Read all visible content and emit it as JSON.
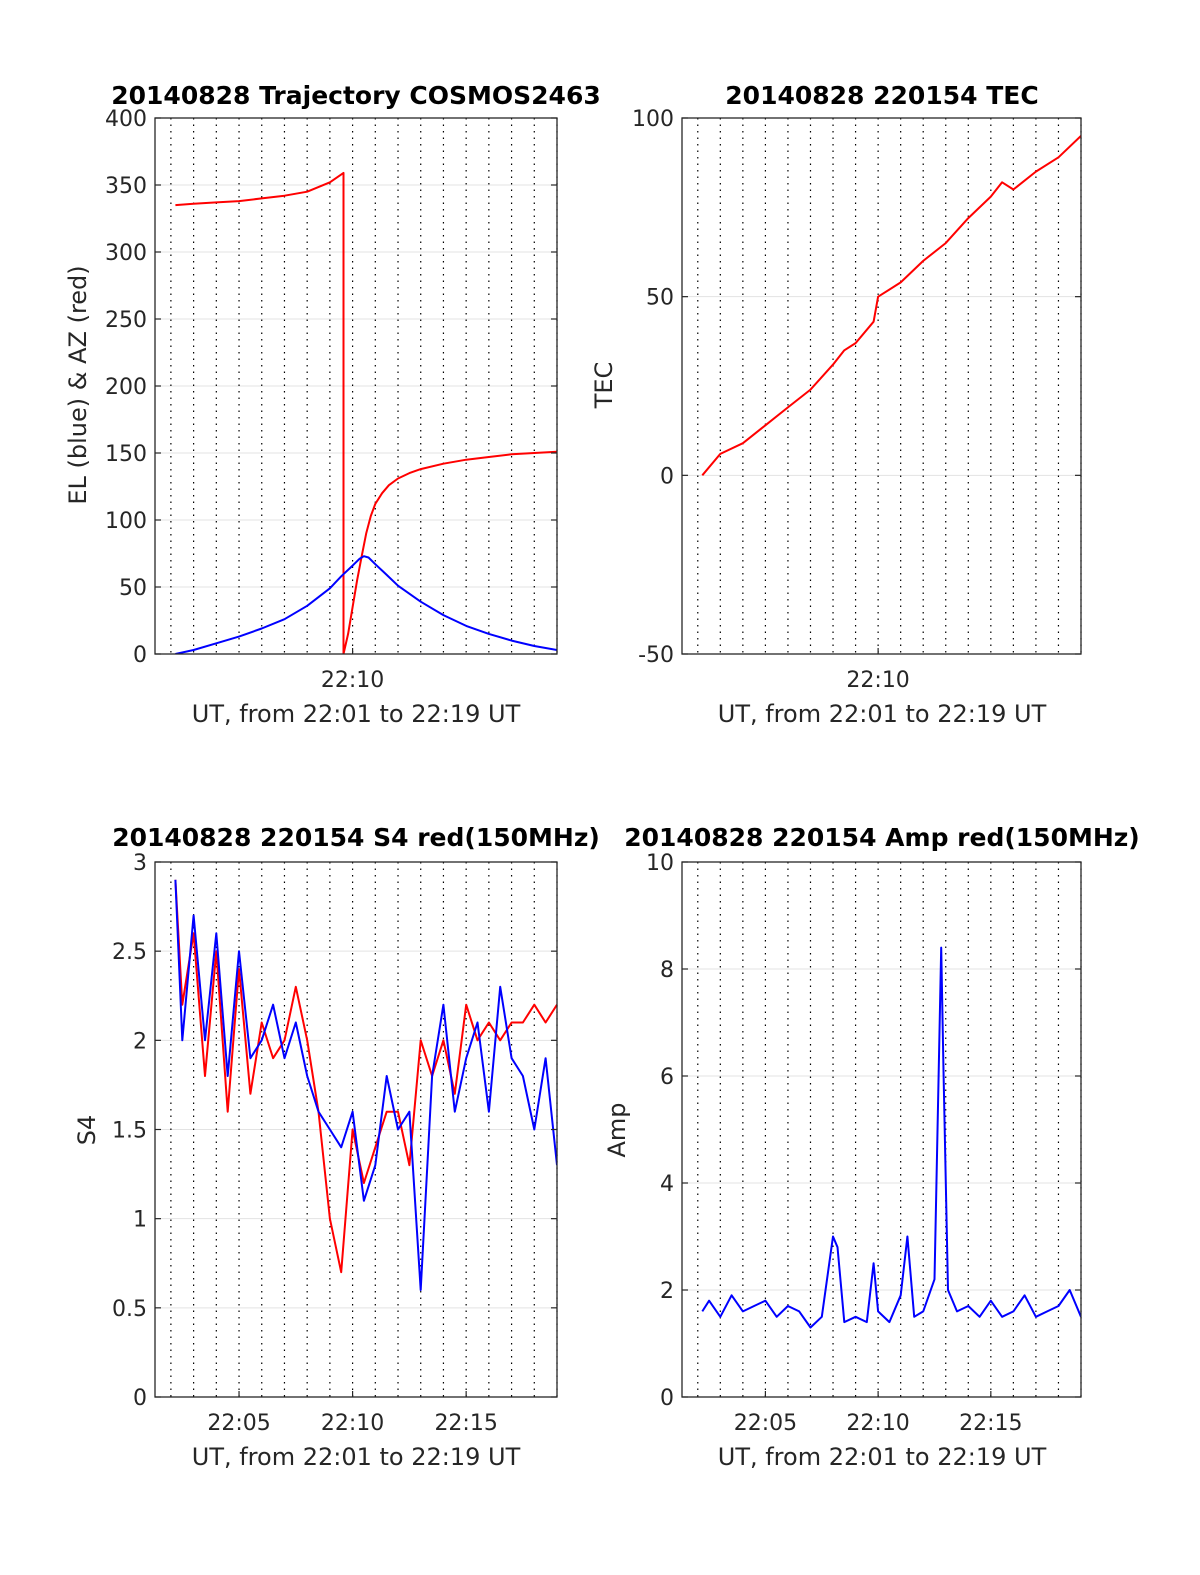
{
  "figure": {
    "colors": {
      "red": "#ff0000",
      "blue": "#0000ff",
      "axis": "#262626",
      "grid": "#000000"
    }
  },
  "chart_data": [
    {
      "type": "line",
      "title": "20140828 Trajectory COSMOS2463",
      "xlabel": "UT, from 22:01 to 22:19 UT",
      "ylabel": "EL (blue) & AZ (red)",
      "x_unit": "minutes after 22:00 UT",
      "xlim": [
        1.3,
        19
      ],
      "ylim": [
        0,
        400
      ],
      "yticks": [
        0,
        50,
        100,
        150,
        200,
        250,
        300,
        350,
        400
      ],
      "xticks": [
        {
          "value": 10,
          "label": "22:10"
        }
      ],
      "x_grid_dotted_every_min": 1,
      "y_grid": true,
      "series": [
        {
          "color": "red",
          "points": [
            [
              2.2,
              335
            ],
            [
              3,
              336
            ],
            [
              4,
              337
            ],
            [
              5,
              338
            ],
            [
              6,
              340
            ],
            [
              7,
              342
            ],
            [
              8,
              345
            ],
            [
              9,
              352
            ],
            [
              9.6,
              359
            ],
            [
              9.6,
              0
            ],
            [
              9.8,
              15
            ],
            [
              10,
              35
            ],
            [
              10.2,
              55
            ],
            [
              10.4,
              73
            ],
            [
              10.6,
              90
            ],
            [
              10.8,
              103
            ],
            [
              11,
              112
            ],
            [
              11.3,
              120
            ],
            [
              11.6,
              126
            ],
            [
              12,
              131
            ],
            [
              12.5,
              135
            ],
            [
              13,
              138
            ],
            [
              14,
              142
            ],
            [
              15,
              145
            ],
            [
              16,
              147
            ],
            [
              17,
              149
            ],
            [
              18,
              150
            ],
            [
              19,
              151
            ]
          ]
        },
        {
          "color": "blue",
          "points": [
            [
              2.2,
              0
            ],
            [
              3,
              3
            ],
            [
              4,
              8
            ],
            [
              5,
              13
            ],
            [
              6,
              19
            ],
            [
              7,
              26
            ],
            [
              8,
              36
            ],
            [
              9,
              49
            ],
            [
              9.5,
              58
            ],
            [
              10,
              66
            ],
            [
              10.3,
              71
            ],
            [
              10.5,
              73
            ],
            [
              10.7,
              72
            ],
            [
              11,
              67
            ],
            [
              11.5,
              59
            ],
            [
              12,
              51
            ],
            [
              13,
              39
            ],
            [
              14,
              29
            ],
            [
              15,
              21
            ],
            [
              16,
              15
            ],
            [
              17,
              10
            ],
            [
              18,
              6
            ],
            [
              19,
              3
            ]
          ]
        }
      ]
    },
    {
      "type": "line",
      "title": "20140828 220154 TEC",
      "xlabel": "UT, from 22:01 to 22:19 UT",
      "ylabel": "TEC",
      "x_unit": "minutes after 22:00 UT",
      "xlim": [
        1.3,
        19
      ],
      "ylim": [
        -50,
        100
      ],
      "yticks": [
        -50,
        0,
        50,
        100
      ],
      "xticks": [
        {
          "value": 10,
          "label": "22:10"
        }
      ],
      "x_grid_dotted_every_min": 1,
      "y_grid": true,
      "series": [
        {
          "color": "red",
          "points": [
            [
              2.2,
              0
            ],
            [
              3,
              6
            ],
            [
              4,
              9
            ],
            [
              5,
              14
            ],
            [
              6,
              19
            ],
            [
              7,
              24
            ],
            [
              8,
              31
            ],
            [
              8.5,
              35
            ],
            [
              9,
              37
            ],
            [
              9.8,
              43
            ],
            [
              10,
              50
            ],
            [
              11,
              54
            ],
            [
              12,
              60
            ],
            [
              13,
              65
            ],
            [
              14,
              72
            ],
            [
              15,
              78
            ],
            [
              15.5,
              82
            ],
            [
              16,
              80
            ],
            [
              17,
              85
            ],
            [
              18,
              89
            ],
            [
              19,
              95
            ]
          ]
        }
      ]
    },
    {
      "type": "line",
      "title": "20140828 220154 S4 red(150MHz)",
      "xlabel": "UT, from 22:01 to 22:19 UT",
      "ylabel": "S4",
      "x_unit": "minutes after 22:00 UT",
      "xlim": [
        1.3,
        19
      ],
      "ylim": [
        0,
        3
      ],
      "yticks": [
        0,
        0.5,
        1,
        1.5,
        2,
        2.5,
        3
      ],
      "xticks": [
        {
          "value": 5,
          "label": "22:05"
        },
        {
          "value": 10,
          "label": "22:10"
        },
        {
          "value": 15,
          "label": "22:15"
        }
      ],
      "x_grid_dotted_every_min": 1,
      "y_grid": true,
      "series": [
        {
          "color": "red",
          "points": [
            [
              2.2,
              2.9
            ],
            [
              2.5,
              2.2
            ],
            [
              3,
              2.6
            ],
            [
              3.5,
              1.8
            ],
            [
              4,
              2.5
            ],
            [
              4.5,
              1.6
            ],
            [
              5,
              2.4
            ],
            [
              5.5,
              1.7
            ],
            [
              6,
              2.1
            ],
            [
              6.5,
              1.9
            ],
            [
              7,
              2.0
            ],
            [
              7.5,
              2.3
            ],
            [
              8,
              2.0
            ],
            [
              8.5,
              1.6
            ],
            [
              9,
              1.0
            ],
            [
              9.5,
              0.7
            ],
            [
              10,
              1.5
            ],
            [
              10.5,
              1.2
            ],
            [
              11,
              1.4
            ],
            [
              11.5,
              1.6
            ],
            [
              12,
              1.6
            ],
            [
              12.5,
              1.3
            ],
            [
              13,
              2.0
            ],
            [
              13.5,
              1.8
            ],
            [
              14,
              2.0
            ],
            [
              14.5,
              1.7
            ],
            [
              15,
              2.2
            ],
            [
              15.5,
              2.0
            ],
            [
              16,
              2.1
            ],
            [
              16.5,
              2.0
            ],
            [
              17,
              2.1
            ],
            [
              17.5,
              2.1
            ],
            [
              18,
              2.2
            ],
            [
              18.5,
              2.1
            ],
            [
              19,
              2.2
            ]
          ]
        },
        {
          "color": "blue",
          "points": [
            [
              2.2,
              2.9
            ],
            [
              2.5,
              2.0
            ],
            [
              3,
              2.7
            ],
            [
              3.5,
              2.0
            ],
            [
              4,
              2.6
            ],
            [
              4.5,
              1.8
            ],
            [
              5,
              2.5
            ],
            [
              5.5,
              1.9
            ],
            [
              6,
              2.0
            ],
            [
              6.5,
              2.2
            ],
            [
              7,
              1.9
            ],
            [
              7.5,
              2.1
            ],
            [
              8,
              1.8
            ],
            [
              8.5,
              1.6
            ],
            [
              9,
              1.5
            ],
            [
              9.5,
              1.4
            ],
            [
              10,
              1.6
            ],
            [
              10.5,
              1.1
            ],
            [
              11,
              1.3
            ],
            [
              11.5,
              1.8
            ],
            [
              12,
              1.5
            ],
            [
              12.5,
              1.6
            ],
            [
              13,
              0.6
            ],
            [
              13.5,
              1.8
            ],
            [
              14,
              2.2
            ],
            [
              14.5,
              1.6
            ],
            [
              15,
              1.9
            ],
            [
              15.5,
              2.1
            ],
            [
              16,
              1.6
            ],
            [
              16.5,
              2.3
            ],
            [
              17,
              1.9
            ],
            [
              17.5,
              1.8
            ],
            [
              18,
              1.5
            ],
            [
              18.5,
              1.9
            ],
            [
              19,
              1.3
            ]
          ]
        }
      ]
    },
    {
      "type": "line",
      "title": "20140828 220154 Amp red(150MHz)",
      "xlabel": "UT, from 22:01 to 22:19 UT",
      "ylabel": "Amp",
      "x_unit": "minutes after 22:00 UT",
      "xlim": [
        1.3,
        19
      ],
      "ylim": [
        0,
        10
      ],
      "yticks": [
        0,
        2,
        4,
        6,
        8,
        10
      ],
      "xticks": [
        {
          "value": 5,
          "label": "22:05"
        },
        {
          "value": 10,
          "label": "22:10"
        },
        {
          "value": 15,
          "label": "22:15"
        }
      ],
      "x_grid_dotted_every_min": 1,
      "y_grid": true,
      "series": [
        {
          "color": "blue",
          "points": [
            [
              2.2,
              1.6
            ],
            [
              2.5,
              1.8
            ],
            [
              3,
              1.5
            ],
            [
              3.5,
              1.9
            ],
            [
              4,
              1.6
            ],
            [
              4.5,
              1.7
            ],
            [
              5,
              1.8
            ],
            [
              5.5,
              1.5
            ],
            [
              6,
              1.7
            ],
            [
              6.5,
              1.6
            ],
            [
              7,
              1.3
            ],
            [
              7.5,
              1.5
            ],
            [
              8,
              3.0
            ],
            [
              8.2,
              2.8
            ],
            [
              8.5,
              1.4
            ],
            [
              9,
              1.5
            ],
            [
              9.5,
              1.4
            ],
            [
              9.8,
              2.5
            ],
            [
              10,
              1.6
            ],
            [
              10.5,
              1.4
            ],
            [
              11,
              1.9
            ],
            [
              11.3,
              3.0
            ],
            [
              11.6,
              1.5
            ],
            [
              12,
              1.6
            ],
            [
              12.5,
              2.2
            ],
            [
              12.8,
              8.4
            ],
            [
              12.9,
              6.1
            ],
            [
              13.1,
              2.0
            ],
            [
              13.5,
              1.6
            ],
            [
              14,
              1.7
            ],
            [
              14.5,
              1.5
            ],
            [
              15,
              1.8
            ],
            [
              15.5,
              1.5
            ],
            [
              16,
              1.6
            ],
            [
              16.5,
              1.9
            ],
            [
              17,
              1.5
            ],
            [
              17.5,
              1.6
            ],
            [
              18,
              1.7
            ],
            [
              18.5,
              2.0
            ],
            [
              19,
              1.5
            ]
          ]
        }
      ]
    }
  ]
}
